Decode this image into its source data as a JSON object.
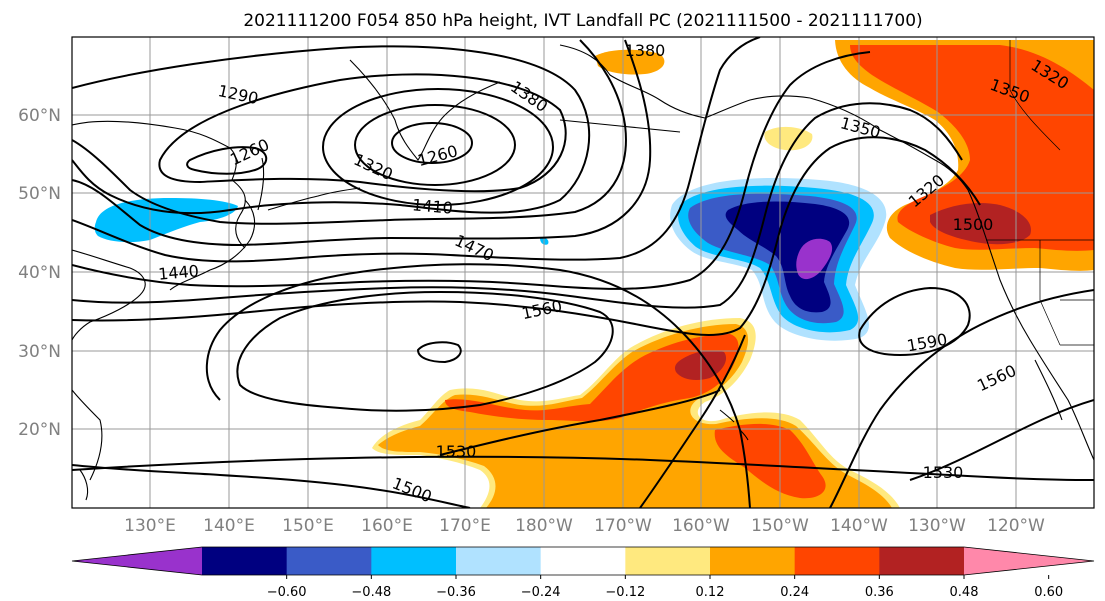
{
  "figure": {
    "title": "2021111200 F054 850 hPa height, IVT Landfall PC (2021111500 - 2021111700)"
  },
  "map": {
    "lat_labels": [
      "60°N",
      "50°N",
      "40°N",
      "30°N",
      "20°N"
    ],
    "lon_labels": [
      "130°E",
      "140°E",
      "150°E",
      "160°E",
      "170°E",
      "180°W",
      "170°W",
      "160°W",
      "150°W",
      "140°W",
      "130°W",
      "120°W"
    ],
    "contour_labels": [
      "1380",
      "1290",
      "1380",
      "1320",
      "1350",
      "1260",
      "1260",
      "1350",
      "1320",
      "1410",
      "1320",
      "1500",
      "1470",
      "1440",
      "1560",
      "1590",
      "1560",
      "1530",
      "1530",
      "1500"
    ]
  },
  "colorbar": {
    "colors": [
      "#9932CC",
      "#000080",
      "#3A5BC7",
      "#00BFFF",
      "#B0E2FF",
      "#FFFFFF",
      "#FFE97F",
      "#FFA500",
      "#FF4500",
      "#B22222",
      "#FF88AA"
    ],
    "tick_labels": [
      "−0.60",
      "−0.48",
      "−0.36",
      "−0.24",
      "−0.12",
      "0.12",
      "0.24",
      "0.36",
      "0.48",
      "0.60"
    ]
  }
}
